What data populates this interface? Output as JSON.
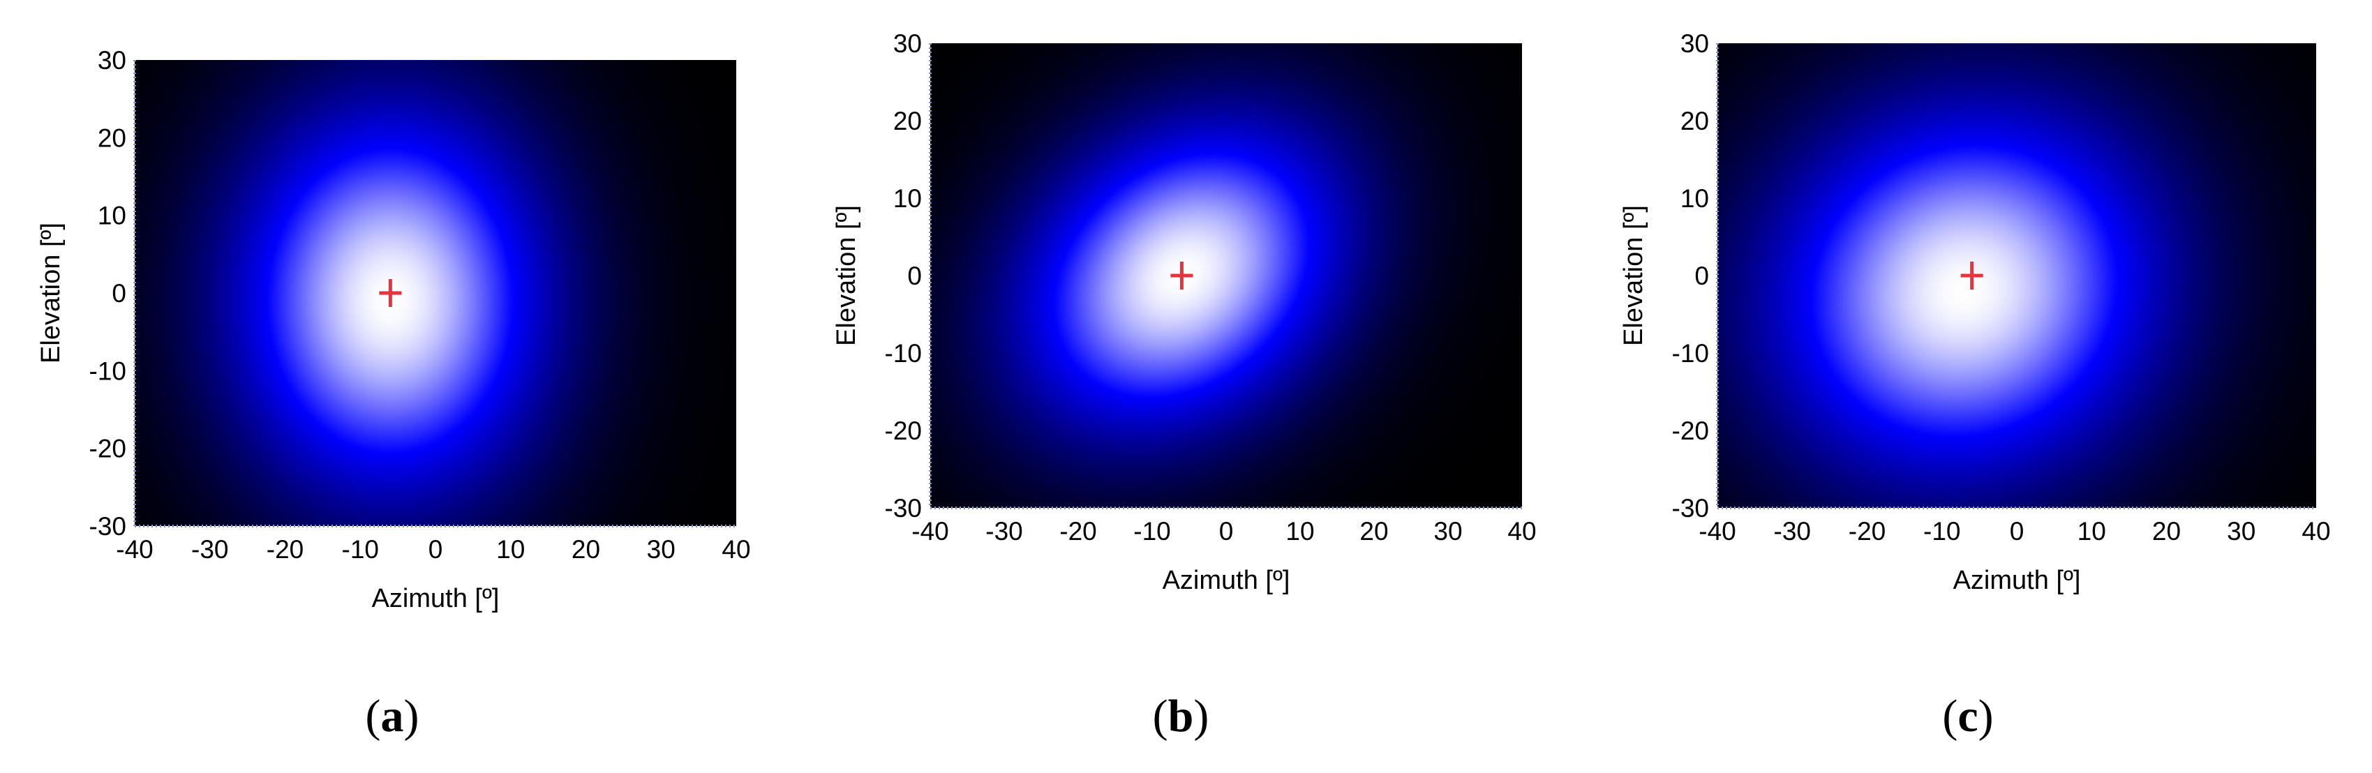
{
  "figure": {
    "panels": [
      {
        "label": "a"
      },
      {
        "label": "b"
      },
      {
        "label": "c"
      }
    ]
  },
  "chart_data": [
    {
      "type": "heatmap",
      "xlabel": "Azimuth [º]",
      "ylabel": "Elevation [º]",
      "xlim": [
        -40,
        40
      ],
      "ylim": [
        -30,
        30
      ],
      "xticks": [
        "-40",
        "-30",
        "-20",
        "-10",
        "0",
        "10",
        "20",
        "30",
        "40"
      ],
      "yticks": [
        "-30",
        "-20",
        "-10",
        "0",
        "10",
        "20",
        "30"
      ],
      "colormap": [
        "#000000",
        "#0000ff",
        "#ffffff"
      ],
      "peak_marker": {
        "x": -6,
        "y": 0,
        "color": "#e8323c"
      },
      "peak": {
        "x": -6,
        "y": -1,
        "sigma_x": 15,
        "sigma_y": 18,
        "rotation_deg": 0
      }
    },
    {
      "type": "heatmap",
      "xlabel": "Azimuth [º]",
      "ylabel": "Elevation [º]",
      "xlim": [
        -40,
        40
      ],
      "ylim": [
        -30,
        30
      ],
      "xticks": [
        "-40",
        "-30",
        "-20",
        "-10",
        "0",
        "10",
        "20",
        "30",
        "40"
      ],
      "yticks": [
        "-30",
        "-20",
        "-10",
        "0",
        "10",
        "20",
        "30"
      ],
      "colormap": [
        "#000000",
        "#0000ff",
        "#ffffff"
      ],
      "peak_marker": {
        "x": -6,
        "y": 0,
        "color": "#e8323c"
      },
      "peak": {
        "x": -6,
        "y": 0,
        "sigma_x": 17,
        "sigma_y": 13,
        "rotation_deg": 35
      }
    },
    {
      "type": "heatmap",
      "xlabel": "Azimuth [º]",
      "ylabel": "Elevation [º]",
      "xlim": [
        -40,
        40
      ],
      "ylim": [
        -30,
        30
      ],
      "xticks": [
        "-40",
        "-30",
        "-20",
        "-10",
        "0",
        "10",
        "20",
        "30",
        "40"
      ],
      "yticks": [
        "-30",
        "-20",
        "-10",
        "0",
        "10",
        "20",
        "30"
      ],
      "colormap": [
        "#000000",
        "#0000ff",
        "#ffffff"
      ],
      "peak_marker": {
        "x": -6,
        "y": 0,
        "color": "#e8323c"
      },
      "peak": {
        "x": -7,
        "y": -2,
        "sigma_x": 19,
        "sigma_y": 17,
        "rotation_deg": 20
      }
    }
  ]
}
